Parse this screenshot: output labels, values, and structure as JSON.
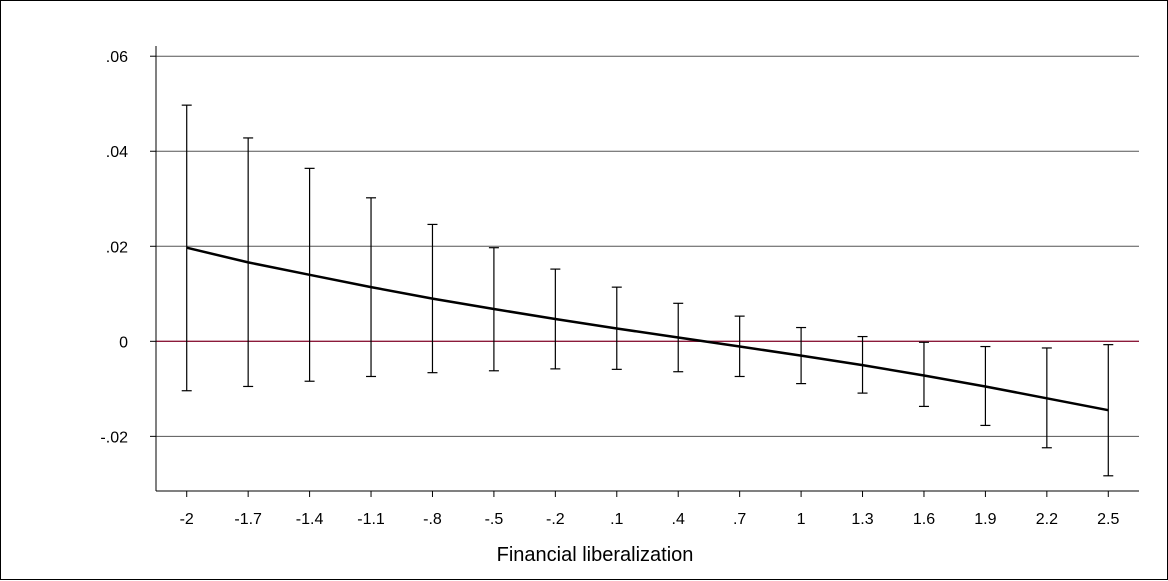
{
  "chart_data": {
    "type": "line",
    "title": "",
    "xlabel": "Financial liberalization",
    "ylabel": "",
    "x": [
      -2,
      -1.7,
      -1.4,
      -1.1,
      -0.8,
      -0.5,
      -0.2,
      0.1,
      0.4,
      0.7,
      1,
      1.3,
      1.6,
      1.9,
      2.2,
      2.5
    ],
    "x_tick_labels": [
      "-2",
      "-1.7",
      "-1.4",
      "-1.1",
      "-.8",
      "-.5",
      "-.2",
      ".1",
      ".4",
      ".7",
      "1",
      "1.3",
      "1.6",
      "1.9",
      "2.2",
      "2.5"
    ],
    "y_ticks": [
      -0.02,
      0,
      0.02,
      0.04,
      0.06
    ],
    "y_tick_labels": [
      "-.02",
      "0",
      ".02",
      ".04",
      ".06"
    ],
    "ylim": [
      -0.0315,
      0.0632
    ],
    "xlim": [
      -2.15,
      2.65
    ],
    "grid": true,
    "reference_line": {
      "y": 0,
      "color": "#8b1a3a"
    },
    "series": [
      {
        "values": [
          0.0197,
          0.0166,
          0.014,
          0.0114,
          0.009,
          0.0068,
          0.0047,
          0.0027,
          0.0008,
          -0.0011,
          -0.003,
          -0.005,
          -0.0072,
          -0.0095,
          -0.012,
          -0.0145
        ],
        "ci_lower": [
          -0.0104,
          -0.0095,
          -0.0084,
          -0.0074,
          -0.0066,
          -0.0062,
          -0.0058,
          -0.0059,
          -0.0064,
          -0.0074,
          -0.0089,
          -0.0109,
          -0.0137,
          -0.0177,
          -0.0224,
          -0.0283
        ],
        "ci_upper": [
          0.0497,
          0.0428,
          0.0364,
          0.0302,
          0.0246,
          0.0197,
          0.0152,
          0.0114,
          0.008,
          0.0053,
          0.0029,
          0.001,
          -0.0002,
          -0.0011,
          -0.0014,
          -0.0007
        ],
        "color": "#000000"
      }
    ]
  }
}
